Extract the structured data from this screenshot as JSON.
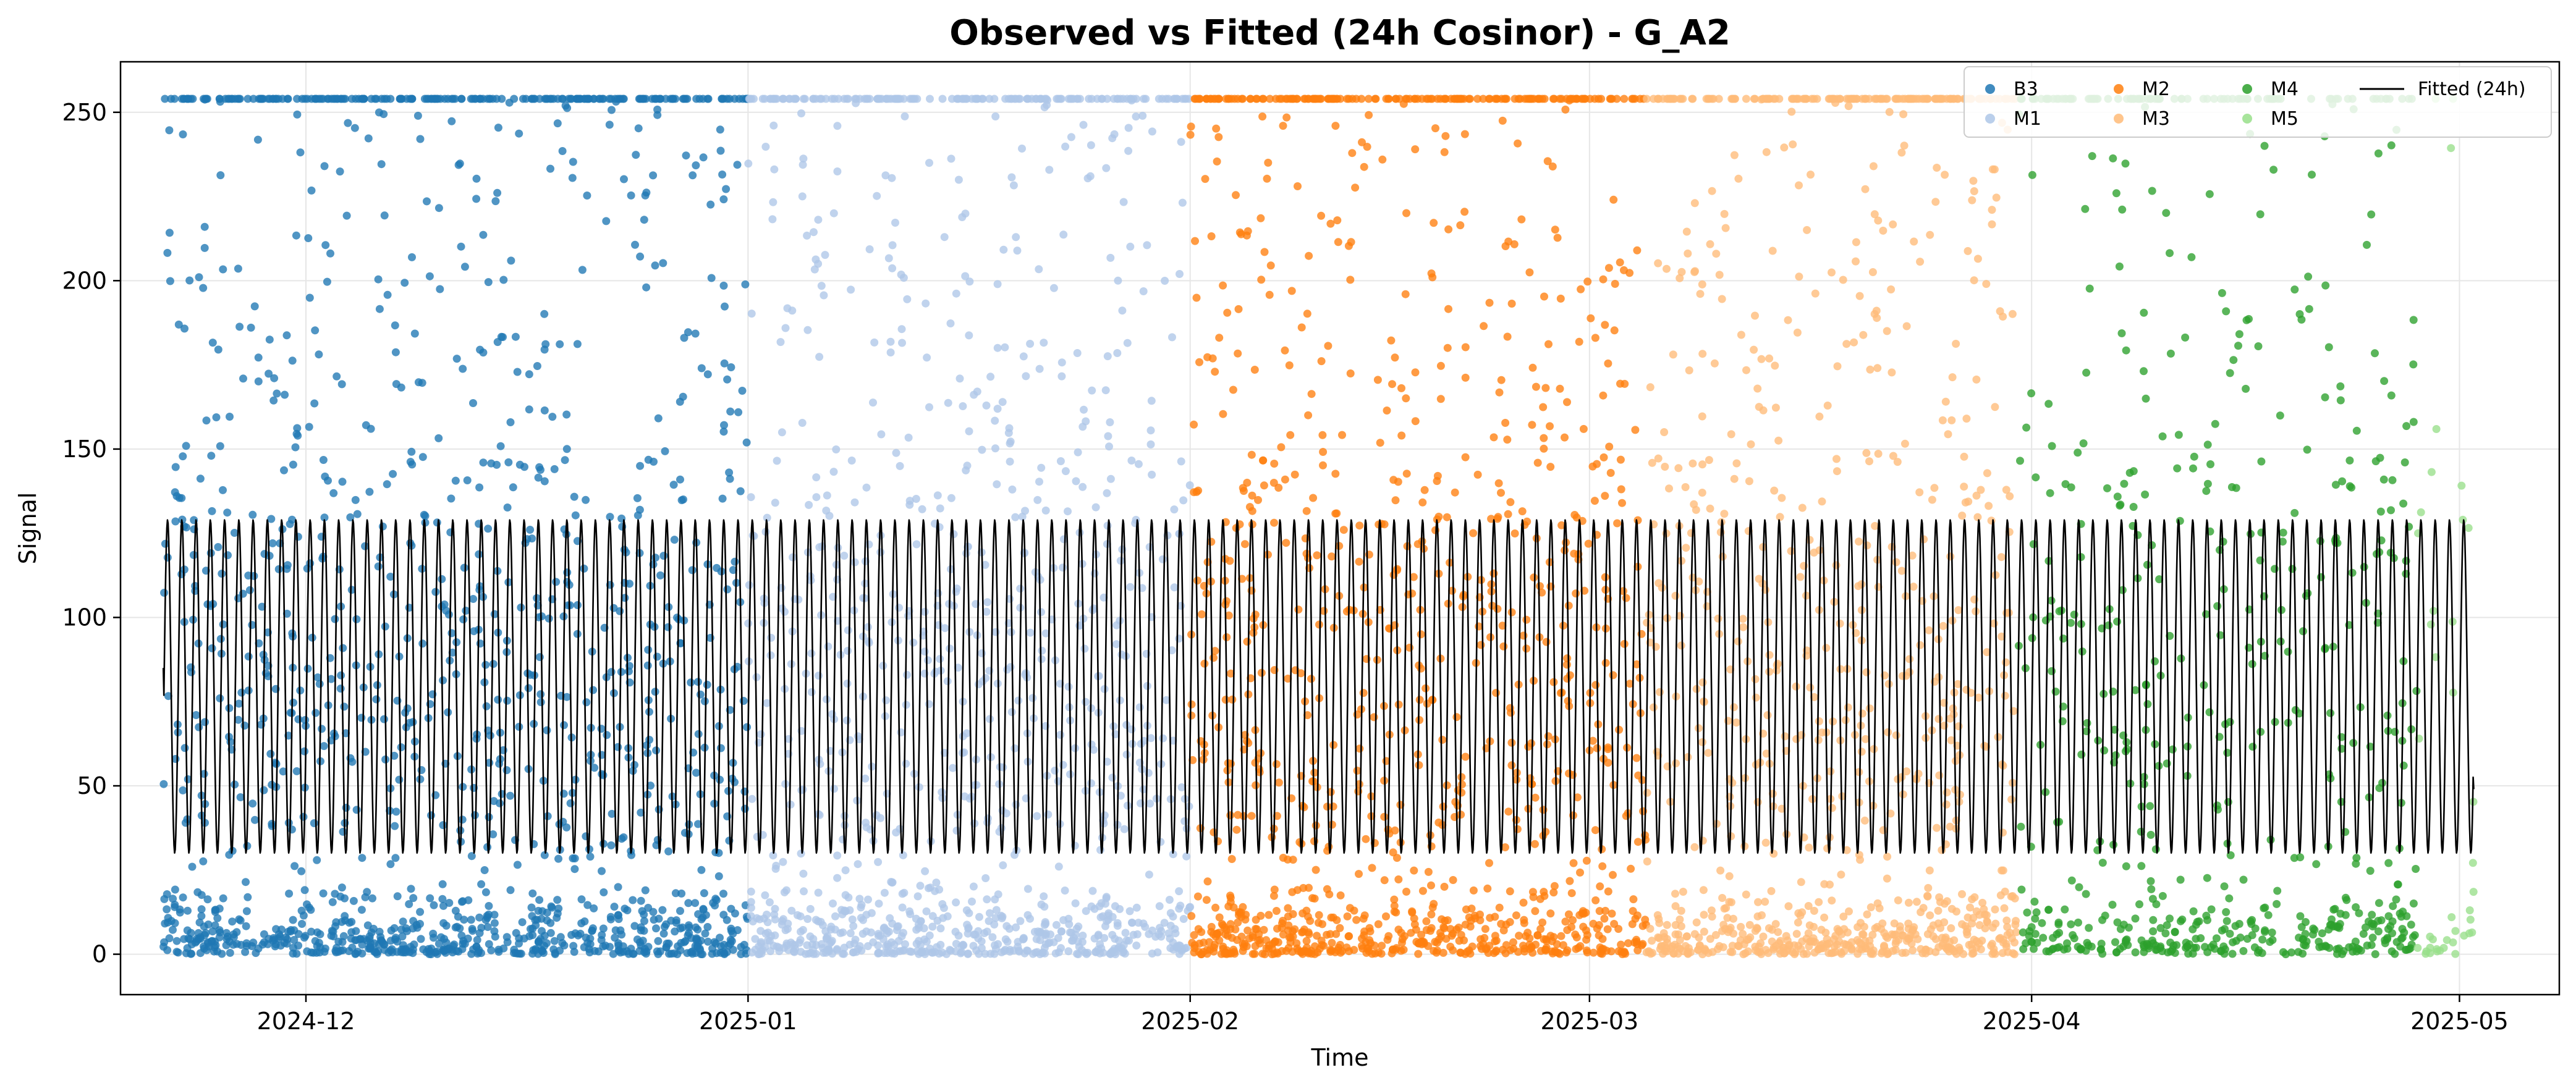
{
  "chart_data": {
    "type": "scatter",
    "title": "Observed vs Fitted (24h Cosinor) - G_A2",
    "xlabel": "Time",
    "ylabel": "Signal",
    "x_range": [
      "2024-11-18",
      "2025-05-08"
    ],
    "ylim": [
      -12,
      265
    ],
    "x_ticks": [
      {
        "date": "2024-12-01",
        "label": "2024-12"
      },
      {
        "date": "2025-01-01",
        "label": "2025-01"
      },
      {
        "date": "2025-02-01",
        "label": "2025-02"
      },
      {
        "date": "2025-03-01",
        "label": "2025-03"
      },
      {
        "date": "2025-04-01",
        "label": "2025-04"
      },
      {
        "date": "2025-05-01",
        "label": "2025-05"
      }
    ],
    "y_ticks": [
      0,
      50,
      100,
      150,
      200,
      250
    ],
    "grid": true,
    "legend_position": "top-right",
    "signal_max": 254,
    "series": [
      {
        "name": "B3",
        "color": "#1f77b4",
        "start": "2024-11-21",
        "end": "2025-01-01",
        "density": "high"
      },
      {
        "name": "M1",
        "color": "#aec7e8",
        "start": "2025-01-01",
        "end": "2025-02-01",
        "density": "high"
      },
      {
        "name": "M2",
        "color": "#ff7f0e",
        "start": "2025-02-01",
        "end": "2025-03-05",
        "density": "high"
      },
      {
        "name": "M3",
        "color": "#ffbb78",
        "start": "2025-03-05",
        "end": "2025-03-31",
        "density": "high"
      },
      {
        "name": "M4",
        "color": "#2ca02c",
        "start": "2025-03-31",
        "end": "2025-04-28",
        "density": "medium"
      },
      {
        "name": "M5",
        "color": "#98df8a",
        "start": "2025-04-28",
        "end": "2025-05-02",
        "density": "low"
      }
    ],
    "fitted": {
      "name": "Fitted (24h)",
      "color": "#000000",
      "period_hours": 24,
      "mesor": 79.5,
      "amplitude": 49.5,
      "min": 30,
      "max": 129,
      "start": "2024-11-21",
      "end": "2025-05-02",
      "start_value": 85,
      "end_value": 49
    }
  }
}
